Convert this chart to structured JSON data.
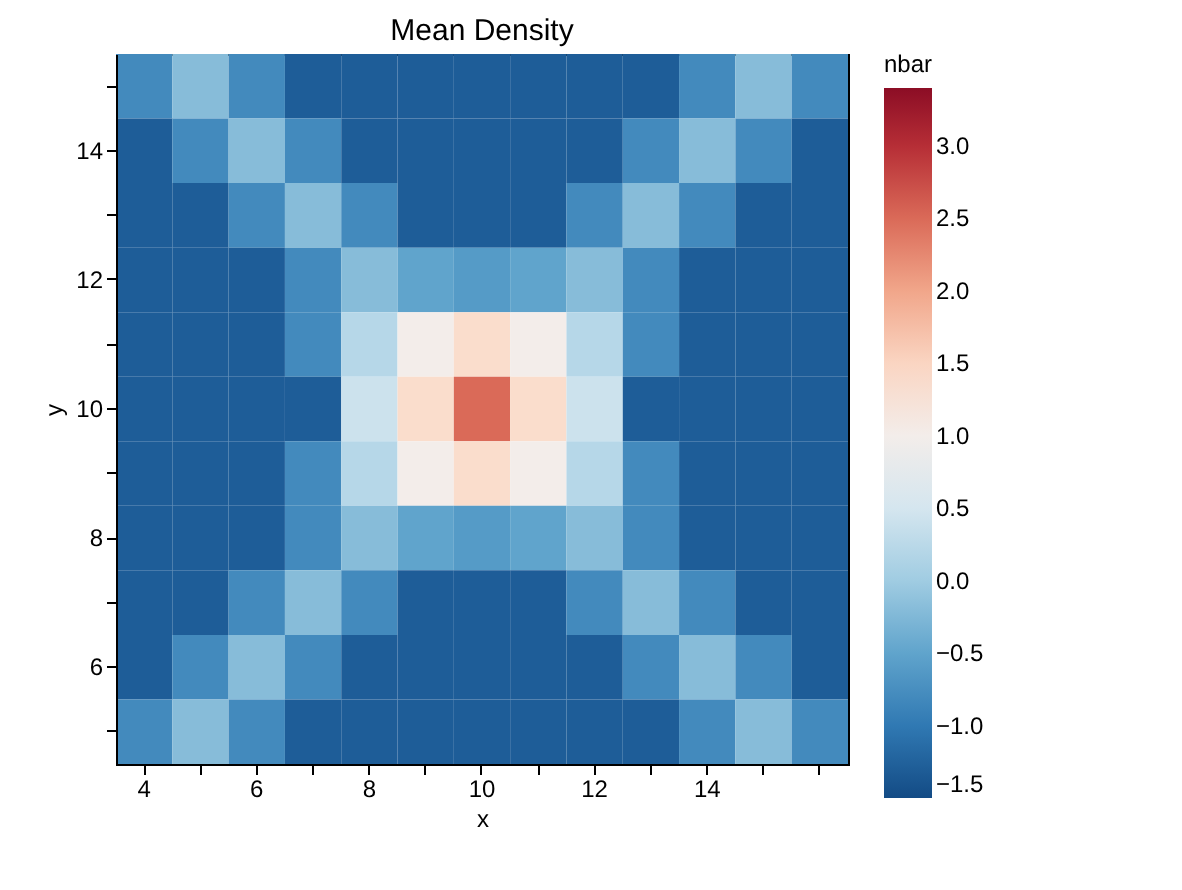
{
  "chart_data": {
    "type": "heatmap",
    "title": "Mean Density",
    "xlabel": "x",
    "ylabel": "y",
    "clabel": "nbar",
    "categories": [
      "4",
      null,
      "6",
      null,
      "8",
      null,
      "10",
      null,
      "12",
      null,
      "14",
      null,
      null
    ],
    "y_categories": [
      null,
      "14",
      null,
      "12",
      null,
      "10",
      null,
      "8",
      null,
      "6",
      null
    ],
    "clim": [
      -1.5,
      3.4
    ],
    "cticks": [
      -1.5,
      {
        "value": -1,
        "label": "−1.0"
      },
      -0.5,
      {
        "value": 0,
        "label": "0.0"
      },
      0.5,
      {
        "value": 1,
        "label": "1.0"
      },
      1.5,
      {
        "value": 2,
        "label": "2.0"
      },
      2.5,
      {
        "value": 3,
        "label": "3.0"
      }
    ],
    "cells": [
      [
        -0.8,
        -0.2,
        -0.8,
        -1.3,
        -1.3,
        -1.3,
        -1.3,
        -1.3,
        -1.3,
        -1.3,
        -0.8,
        -0.2,
        -0.8
      ],
      [
        -1.3,
        -0.8,
        -0.2,
        -0.8,
        -1.3,
        -1.3,
        -1.3,
        -1.3,
        -1.3,
        -0.8,
        -0.2,
        -0.8,
        -1.3
      ],
      [
        -1.3,
        -1.3,
        -0.8,
        -0.2,
        -0.8,
        -1.3,
        -1.3,
        -1.3,
        -0.8,
        -0.2,
        -0.8,
        -1.3,
        -1.3
      ],
      [
        -1.3,
        -1.3,
        -1.3,
        -0.8,
        -0.2,
        -0.5,
        -0.6,
        -0.5,
        -0.2,
        -0.8,
        -1.3,
        -1.3,
        -1.3
      ],
      [
        -1.3,
        -1.3,
        -1.3,
        -0.8,
        0.2,
        1.0,
        1.4,
        1.0,
        0.2,
        -0.8,
        -1.3,
        -1.3,
        -1.3
      ],
      [
        -1.3,
        -1.3,
        -1.3,
        -1.3,
        0.4,
        1.4,
        2.5,
        1.4,
        0.4,
        -1.3,
        -1.3,
        -1.3,
        -1.3
      ],
      [
        -1.3,
        -1.3,
        -1.3,
        -0.8,
        0.2,
        1.0,
        1.4,
        1.0,
        0.2,
        -0.8,
        -1.3,
        -1.3,
        -1.3
      ],
      [
        -1.3,
        -1.3,
        -1.3,
        -0.8,
        -0.2,
        -0.5,
        -0.6,
        -0.5,
        -0.2,
        -0.8,
        -1.3,
        -1.3,
        -1.3
      ],
      [
        -1.3,
        -1.3,
        -0.8,
        -0.2,
        -0.8,
        -1.3,
        -1.3,
        -1.3,
        -0.8,
        -0.2,
        -0.8,
        -1.3,
        -1.3
      ],
      [
        -1.3,
        -0.8,
        -0.2,
        -0.8,
        -1.3,
        -1.3,
        -1.3,
        -1.3,
        -1.3,
        -0.8,
        -0.2,
        -0.8,
        -1.3
      ],
      [
        -0.8,
        -0.2,
        -0.8,
        -1.3,
        -1.3,
        -1.3,
        -1.3,
        -1.3,
        -1.3,
        -1.3,
        -0.8,
        -0.2,
        -0.8
      ]
    ]
  }
}
